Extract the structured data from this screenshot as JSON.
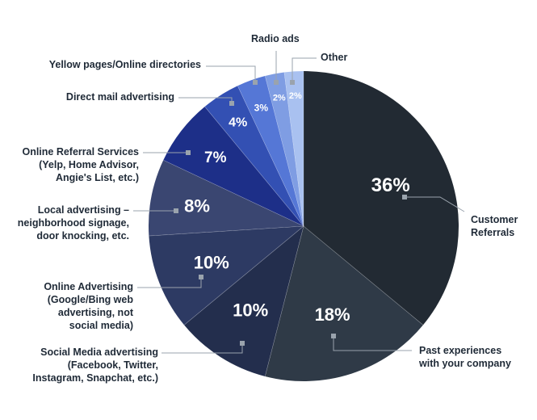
{
  "chart_data": {
    "type": "pie",
    "title": "",
    "start": "12 o'clock",
    "direction": "clockwise",
    "slices": [
      {
        "label": "Customer Referrals",
        "label_lines": [
          "Customer",
          "Referrals"
        ],
        "value": 36,
        "value_text": "36%",
        "color": "#222a33"
      },
      {
        "label": "Past experiences with your company",
        "label_lines": [
          "Past experiences",
          "with your company"
        ],
        "value": 18,
        "value_text": "18%",
        "color": "#2f3a47"
      },
      {
        "label": "Social Media advertising (Facebook, Twitter, Instagram, Snapchat, etc.)",
        "label_lines": [
          "Social Media advertising",
          "(Facebook, Twitter,",
          "Instagram, Snapchat, etc.)"
        ],
        "value": 10,
        "value_text": "10%",
        "color": "#232e4d"
      },
      {
        "label": "Online Advertising (Google/Bing web advertising, not social media)",
        "label_lines": [
          "Online Advertising",
          "(Google/Bing web",
          "advertising, not",
          "social media)"
        ],
        "value": 10,
        "value_text": "10%",
        "color": "#2d3a63"
      },
      {
        "label": "Local advertising – neighborhood signage, door knocking, etc.",
        "label_lines": [
          "Local advertising –",
          "neighborhood signage,",
          "door knocking, etc."
        ],
        "value": 8,
        "value_text": "8%",
        "color": "#3a4671"
      },
      {
        "label": "Online Referral Services (Yelp, Home Advisor, Angie's List, etc.)",
        "label_lines": [
          "Online Referral Services",
          "(Yelp, Home Advisor,",
          "Angie's List, etc.)"
        ],
        "value": 7,
        "value_text": "7%",
        "color": "#1d2f88"
      },
      {
        "label": "Direct mail advertising",
        "label_lines": [
          "Direct mail advertising"
        ],
        "value": 4,
        "value_text": "4%",
        "color": "#3350b3"
      },
      {
        "label": "Yellow pages/Online directories",
        "label_lines": [
          "Yellow pages/Online directories"
        ],
        "value": 3,
        "value_text": "3%",
        "color": "#5577d6"
      },
      {
        "label": "Radio ads",
        "label_lines": [
          "Radio ads"
        ],
        "value": 2,
        "value_text": "2%",
        "color": "#7f9de3"
      },
      {
        "label": "Other",
        "label_lines": [
          "Other"
        ],
        "value": 2,
        "value_text": "2%",
        "color": "#a9c1f0"
      }
    ]
  }
}
